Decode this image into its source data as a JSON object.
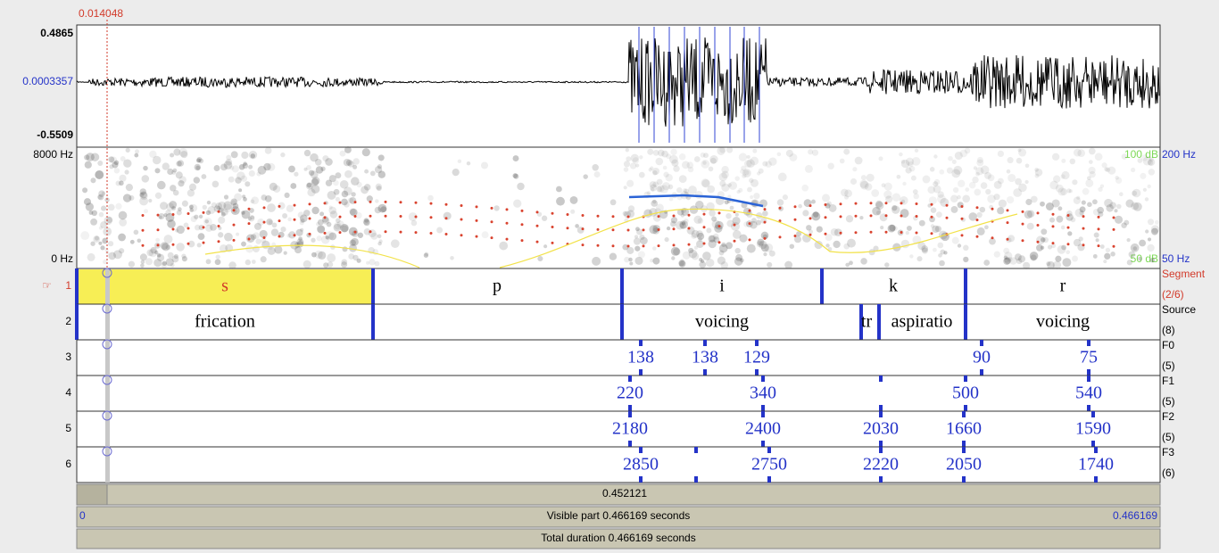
{
  "cursor_time": "0.014048",
  "waveform": {
    "max": "0.4865",
    "zero": "0.0003357",
    "min": "-0.5509"
  },
  "spectrogram": {
    "freq_max": "8000 Hz",
    "freq_min": "0 Hz",
    "db_max": "100 dB",
    "pitch_max": "200 Hz",
    "db_min": "50 dB",
    "pitch_min": "50 Hz"
  },
  "tiers": [
    {
      "marker": "☞",
      "number": "1",
      "name": "Segment",
      "count": "(2/6)",
      "labels": [
        "s",
        "p",
        "i",
        "k",
        "r"
      ]
    },
    {
      "number": "2",
      "name": "Source",
      "count": "(8)",
      "labels": [
        "frication",
        "voicing",
        "tr",
        "aspiratio",
        "voicing"
      ]
    },
    {
      "number": "3",
      "name": "F0",
      "count": "(5)",
      "labels": [
        "138",
        "138",
        "129",
        "90",
        "75"
      ]
    },
    {
      "number": "4",
      "name": "F1",
      "count": "(5)",
      "labels": [
        "220",
        "340",
        "500",
        "540"
      ]
    },
    {
      "number": "5",
      "name": "F2",
      "count": "(5)",
      "labels": [
        "2180",
        "2400",
        "2030",
        "1660",
        "1590"
      ]
    },
    {
      "number": "6",
      "name": "F3",
      "count": "(6)",
      "labels": [
        "2850",
        "2750",
        "2220",
        "2050",
        "1740"
      ]
    }
  ],
  "footer": {
    "window": "0.452121",
    "start": "0",
    "visible": "Visible part 0.466169 seconds",
    "end": "0.466169",
    "total": "Total duration 0.466169 seconds"
  }
}
